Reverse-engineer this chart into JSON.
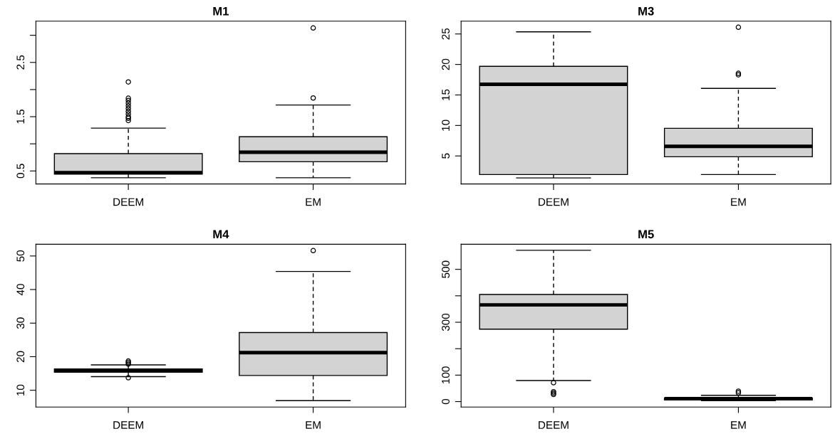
{
  "chart_data": [
    {
      "type": "box",
      "title": "M1",
      "categories": [
        "DEEM",
        "EM"
      ],
      "colors": [
        "#d3d3d3",
        "#d3d3d3"
      ],
      "ylim": [
        0.26,
        3.26
      ],
      "yticks": [
        0.5,
        {
          "value": 1,
          "label": null
        },
        1.5,
        {
          "value": 2,
          "label": null
        },
        2.5,
        {
          "value": 3,
          "label": null
        }
      ],
      "grid": false,
      "boxes": [
        {
          "low": 0.375,
          "q1": 0.44,
          "median": 0.47,
          "q3": 0.82,
          "high": 1.29,
          "outliers": [
            1.43,
            1.47,
            1.5,
            1.55,
            1.6,
            1.65,
            1.7,
            1.75,
            1.8,
            1.84,
            2.14
          ]
        },
        {
          "low": 0.375,
          "q1": 0.67,
          "median": 0.845,
          "q3": 1.13,
          "high": 1.715,
          "outliers": [
            1.845,
            3.135
          ]
        }
      ]
    },
    {
      "type": "box",
      "title": "M3",
      "categories": [
        "DEEM",
        "EM"
      ],
      "colors": [
        "#d3d3d3",
        "#d3d3d3"
      ],
      "ylim": [
        0.4,
        27.1
      ],
      "yticks": [
        5,
        10,
        15,
        20,
        25
      ],
      "grid": false,
      "boxes": [
        {
          "low": 1.4,
          "q1": 1.95,
          "median": 16.75,
          "q3": 19.7,
          "high": 25.35
        },
        {
          "low": 1.95,
          "q1": 4.87,
          "median": 6.57,
          "q3": 9.53,
          "high": 16.08,
          "outliers": [
            18.3,
            18.55,
            26.1
          ]
        }
      ]
    },
    {
      "type": "box",
      "title": "M4",
      "categories": [
        "DEEM",
        "EM"
      ],
      "colors": [
        "#d3d3d3",
        "#d3d3d3"
      ],
      "ylim": [
        5,
        53.5
      ],
      "yticks": [
        10,
        20,
        30,
        40,
        50
      ],
      "grid": false,
      "boxes": [
        {
          "low": 14.06,
          "q1": 15.36,
          "median": 15.84,
          "q3": 16.33,
          "high": 17.55,
          "outliers": [
            13.73,
            17.8,
            18.3,
            18.7
          ]
        },
        {
          "low": 6.9,
          "q1": 14.4,
          "median": 21.2,
          "q3": 27.2,
          "high": 45.4,
          "outliers": [
            51.6
          ]
        }
      ]
    },
    {
      "type": "box",
      "title": "M5",
      "categories": [
        "DEEM",
        "EM"
      ],
      "colors": [
        "#d3d3d3",
        "#d3d3d3"
      ],
      "ylim": [
        -20.7,
        595
      ],
      "yticks": [
        0,
        100,
        {
          "value": 200,
          "label": null
        },
        300,
        {
          "value": 400,
          "label": null
        },
        500
      ],
      "grid": false,
      "boxes": [
        {
          "low": 79.5,
          "q1": 273.8,
          "median": 365.7,
          "q3": 405,
          "high": 572,
          "outliers": [
            71.3,
            37.2,
            32,
            26.9
          ]
        },
        {
          "low": 3.1,
          "q1": 6.2,
          "median": 11.4,
          "q3": 13.4,
          "high": 23.8,
          "outliers": [
            33,
            39.3
          ]
        }
      ]
    }
  ]
}
